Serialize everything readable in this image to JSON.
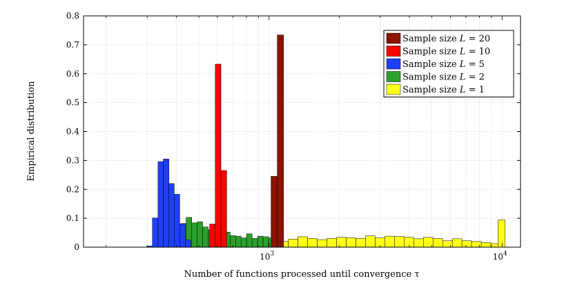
{
  "chart_data": {
    "type": "bar",
    "title": "",
    "xlabel": "Number of functions processed until convergence τ",
    "ylabel": "Empirical distribution",
    "xscale": "log",
    "xlim": [
      160,
      12000
    ],
    "ylim": [
      0,
      0.8
    ],
    "yticks": [
      "0",
      "0.1",
      "0.2",
      "0.3",
      "0.4",
      "0.5",
      "0.6",
      "0.7",
      "0.8"
    ],
    "ytick_values": [
      0,
      0.1,
      0.2,
      0.3,
      0.4,
      0.5,
      0.6,
      0.7,
      0.8
    ],
    "xticks": [
      {
        "value": 1000,
        "base": "10",
        "exp": "3"
      },
      {
        "value": 10000,
        "base": "10",
        "exp": "4"
      }
    ],
    "grid": true,
    "legend_position": "top-right",
    "series": [
      {
        "name": "Sample size L = 1",
        "legend_prefix": "Sample size ",
        "legend_var": "L",
        "legend_eq": " = 1",
        "color": "#ffff1a",
        "bins": [
          [
            1000,
            1100,
            0.022
          ],
          [
            1100,
            1210,
            0.02
          ],
          [
            1210,
            1331,
            0.028
          ],
          [
            1331,
            1464,
            0.036
          ],
          [
            1464,
            1611,
            0.03
          ],
          [
            1611,
            1772,
            0.026
          ],
          [
            1772,
            1949,
            0.03
          ],
          [
            1949,
            2144,
            0.034
          ],
          [
            2144,
            2358,
            0.032
          ],
          [
            2358,
            2594,
            0.03
          ],
          [
            2594,
            2853,
            0.039
          ],
          [
            2853,
            3138,
            0.032
          ],
          [
            3138,
            3452,
            0.038
          ],
          [
            3452,
            3797,
            0.037
          ],
          [
            3797,
            4177,
            0.034
          ],
          [
            4177,
            4595,
            0.029
          ],
          [
            4595,
            5054,
            0.034
          ],
          [
            5054,
            5560,
            0.03
          ],
          [
            5560,
            6116,
            0.022
          ],
          [
            6116,
            6727,
            0.029
          ],
          [
            6727,
            7400,
            0.022
          ],
          [
            7400,
            8140,
            0.02
          ],
          [
            8140,
            8954,
            0.016
          ],
          [
            8954,
            9600,
            0.012
          ],
          [
            9600,
            10300,
            0.094
          ]
        ]
      },
      {
        "name": "Sample size L = 2",
        "legend_prefix": "Sample size ",
        "legend_var": "L",
        "legend_eq": " = 2",
        "color": "#2ca02c",
        "bins": [
          [
            375,
            396,
            0.005
          ],
          [
            396,
            418,
            0.038
          ],
          [
            418,
            441,
            0.082
          ],
          [
            441,
            466,
            0.103
          ],
          [
            466,
            492,
            0.084
          ],
          [
            492,
            519,
            0.088
          ],
          [
            519,
            548,
            0.07
          ],
          [
            548,
            579,
            0.06
          ],
          [
            579,
            611,
            0.058
          ],
          [
            611,
            645,
            0.06
          ],
          [
            645,
            681,
            0.052
          ],
          [
            681,
            719,
            0.04
          ],
          [
            719,
            759,
            0.038
          ],
          [
            759,
            801,
            0.032
          ],
          [
            801,
            846,
            0.046
          ],
          [
            846,
            893,
            0.03
          ],
          [
            893,
            943,
            0.038
          ],
          [
            943,
            995,
            0.036
          ],
          [
            995,
            1050,
            0.032
          ]
        ]
      },
      {
        "name": "Sample size L = 5",
        "legend_prefix": "Sample size ",
        "legend_var": "L",
        "legend_eq": " = 5",
        "color": "#1f3fff",
        "bins": [
          [
            300,
            316,
            0.004
          ],
          [
            316,
            334,
            0.101
          ],
          [
            334,
            352,
            0.296
          ],
          [
            352,
            372,
            0.305
          ],
          [
            372,
            392,
            0.22
          ],
          [
            392,
            414,
            0.183
          ],
          [
            414,
            437,
            0.08
          ],
          [
            437,
            461,
            0.025
          ]
        ]
      },
      {
        "name": "Sample size L = 10",
        "legend_prefix": "Sample size ",
        "legend_var": "L",
        "legend_eq": " = 10",
        "color": "#ff0000",
        "bins": [
          [
            556,
            588,
            0.08
          ],
          [
            588,
            622,
            0.633
          ],
          [
            622,
            658,
            0.265
          ]
        ]
      },
      {
        "name": "Sample size L = 20",
        "legend_prefix": "Sample size ",
        "legend_var": "L",
        "legend_eq": " = 20",
        "color": "#8b1400",
        "bins": [
          [
            1020,
            1085,
            0.245
          ],
          [
            1085,
            1155,
            0.734
          ]
        ]
      }
    ],
    "legend_order": [
      4,
      3,
      2,
      1,
      0
    ]
  }
}
